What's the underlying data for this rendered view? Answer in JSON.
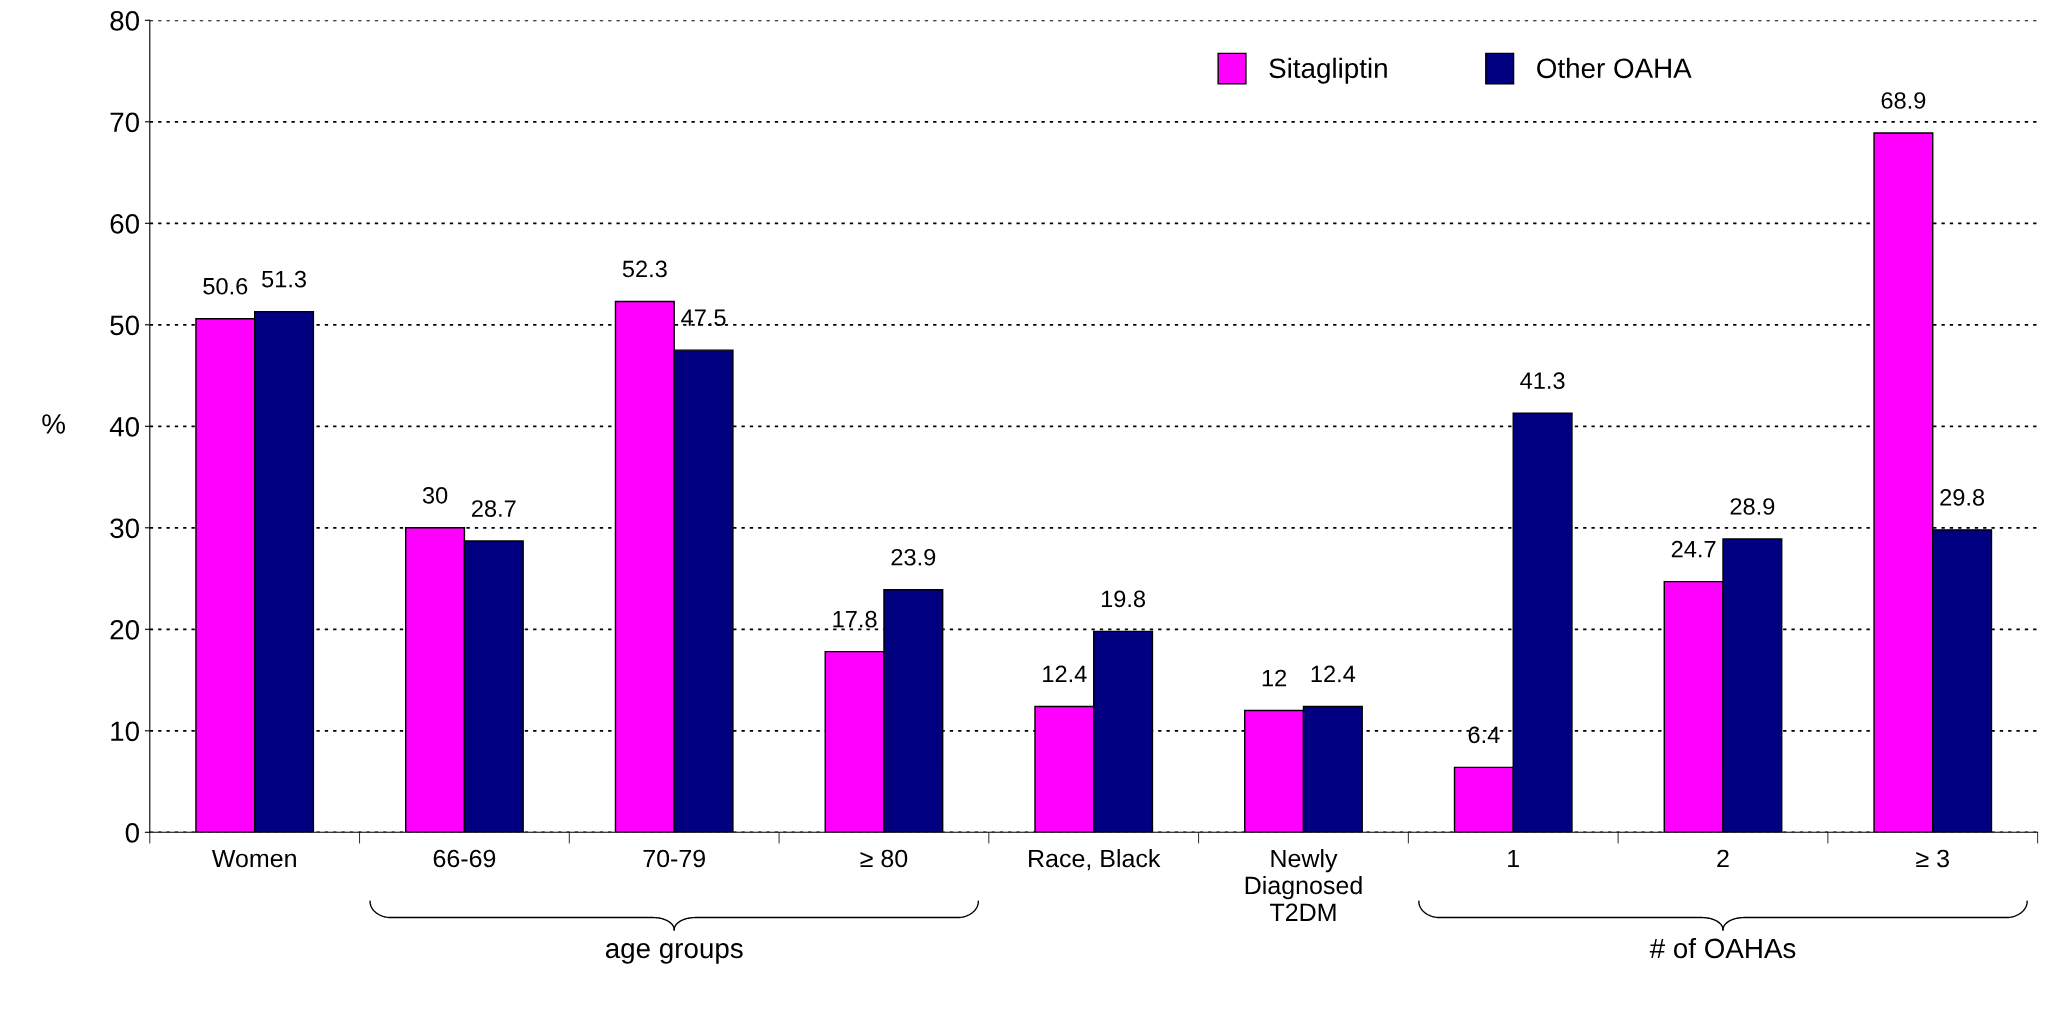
{
  "chart_data": {
    "type": "bar",
    "ylabel": "%",
    "categories": [
      "Women",
      "66-69",
      "70-79",
      "≥ 80",
      "Race, Black",
      "Newly\nDiagnosed\nT2DM",
      "1",
      "2",
      "≥ 3"
    ],
    "series": [
      {
        "name": "Sitagliptin",
        "color": "#ff00ff",
        "values": [
          50.6,
          30,
          52.3,
          17.8,
          12.4,
          12,
          6.4,
          24.7,
          68.9
        ]
      },
      {
        "name": "Other OAHA",
        "color": "#000080",
        "values": [
          51.3,
          28.7,
          47.5,
          23.9,
          19.8,
          12.4,
          41.3,
          28.9,
          29.8
        ]
      }
    ],
    "ylim": [
      0,
      80
    ],
    "yticks": [
      0,
      10,
      20,
      30,
      40,
      50,
      60,
      70,
      80
    ],
    "grid": "y",
    "legend": "top right",
    "data_labels": true,
    "annotations": [
      "age groups",
      "# of OAHAs"
    ]
  }
}
